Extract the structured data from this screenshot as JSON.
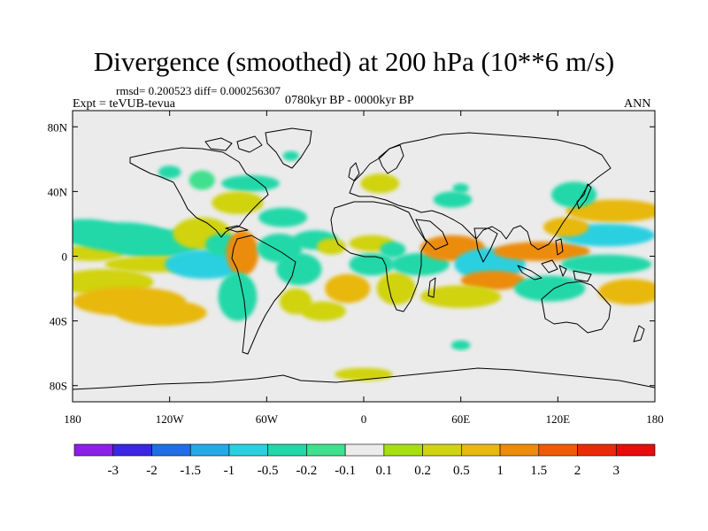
{
  "chart_data": {
    "type": "heatmap",
    "title": "Divergence (smoothed) at 200 hPa (10**6 m/s)",
    "stats": "rmsd= 0.200523  diff= 0.000256307",
    "experiment": "Expt = teVUB-tevua",
    "period": "0780kyr BP - 0000kyr BP",
    "season": "ANN",
    "x_ticks": [
      "180",
      "120W",
      "60W",
      "0",
      "60E",
      "120E",
      "180"
    ],
    "x_values": [
      -180,
      -120,
      -60,
      0,
      60,
      120,
      180
    ],
    "y_ticks": [
      "80N",
      "40N",
      "0",
      "40S",
      "80S"
    ],
    "y_values": [
      80,
      40,
      0,
      -40,
      -80
    ],
    "xlim": [
      -180,
      180
    ],
    "ylim": [
      -90,
      90
    ],
    "colorbar": {
      "labels": [
        "-3",
        "-2",
        "-1.5",
        "-1",
        "-0.5",
        "-0.2",
        "-0.1",
        "0.1",
        "0.2",
        "0.5",
        "1",
        "1.5",
        "2",
        "3"
      ],
      "colors": [
        "#8c1fe8",
        "#3b26e6",
        "#1f6fe6",
        "#24a8e8",
        "#2ad0e0",
        "#20d8a8",
        "#3fe08e",
        "#ebebeb",
        "#a7df10",
        "#d0d30f",
        "#e8b80c",
        "#ec8c0a",
        "#ef5a08",
        "#ec2a08",
        "#e80c0c"
      ]
    },
    "patches": [
      {
        "lon": -172,
        "lat": 15,
        "w": 22,
        "h": 8,
        "v": -0.3
      },
      {
        "lon": -168,
        "lat": 2,
        "w": 20,
        "h": 5,
        "v": 0.25
      },
      {
        "lon": -160,
        "lat": -16,
        "w": 30,
        "h": 8,
        "v": 0.3
      },
      {
        "lon": -150,
        "lat": 12,
        "w": 30,
        "h": 9,
        "v": -0.4
      },
      {
        "lon": -130,
        "lat": 8,
        "w": 30,
        "h": 9,
        "v": -0.5
      },
      {
        "lon": -130,
        "lat": -5,
        "w": 30,
        "h": 5,
        "v": 0.3
      },
      {
        "lon": -145,
        "lat": -28,
        "w": 35,
        "h": 9,
        "v": 0.5
      },
      {
        "lon": -125,
        "lat": -35,
        "w": 28,
        "h": 8,
        "v": 0.6
      },
      {
        "lon": -100,
        "lat": 14,
        "w": 18,
        "h": 10,
        "v": 0.3
      },
      {
        "lon": -98,
        "lat": -5,
        "w": 25,
        "h": 9,
        "v": -0.6
      },
      {
        "lon": -87,
        "lat": 7,
        "w": 11,
        "h": 7,
        "v": -0.5
      },
      {
        "lon": -75,
        "lat": 2,
        "w": 10,
        "h": 14,
        "v": 1.2
      },
      {
        "lon": -78,
        "lat": -25,
        "w": 12,
        "h": 15,
        "v": -0.4
      },
      {
        "lon": -100,
        "lat": 47,
        "w": 8,
        "h": 6,
        "v": -0.2
      },
      {
        "lon": -120,
        "lat": 52,
        "w": 7,
        "h": 4,
        "v": -0.3
      },
      {
        "lon": -70,
        "lat": 45,
        "w": 18,
        "h": 5,
        "v": -0.4
      },
      {
        "lon": -78,
        "lat": 33,
        "w": 16,
        "h": 7,
        "v": 0.4
      },
      {
        "lon": -50,
        "lat": 24,
        "w": 15,
        "h": 6,
        "v": -0.4
      },
      {
        "lon": -30,
        "lat": 10,
        "w": 14,
        "h": 6,
        "v": -0.5
      },
      {
        "lon": -52,
        "lat": 5,
        "w": 14,
        "h": 9,
        "v": -0.3
      },
      {
        "lon": -40,
        "lat": -8,
        "w": 14,
        "h": 10,
        "v": -0.5
      },
      {
        "lon": -42,
        "lat": -28,
        "w": 10,
        "h": 8,
        "v": 0.4
      },
      {
        "lon": -25,
        "lat": -34,
        "w": 14,
        "h": 6,
        "v": 0.3
      },
      {
        "lon": -45,
        "lat": 62,
        "w": 5,
        "h": 3,
        "v": -0.3
      },
      {
        "lon": -20,
        "lat": 6,
        "w": 9,
        "h": 5,
        "v": 0.4
      },
      {
        "lon": -10,
        "lat": -20,
        "w": 14,
        "h": 9,
        "v": 0.5
      },
      {
        "lon": 5,
        "lat": -5,
        "w": 14,
        "h": 7,
        "v": -0.5
      },
      {
        "lon": 5,
        "lat": 8,
        "w": 14,
        "h": 5,
        "v": 0.3
      },
      {
        "lon": 20,
        "lat": -20,
        "w": 12,
        "h": 10,
        "v": 0.4
      },
      {
        "lon": 18,
        "lat": 4,
        "w": 8,
        "h": 5,
        "v": -0.4
      },
      {
        "lon": 10,
        "lat": 45,
        "w": 12,
        "h": 6,
        "v": 0.3
      },
      {
        "lon": 35,
        "lat": -5,
        "w": 18,
        "h": 7,
        "v": -0.3
      },
      {
        "lon": 55,
        "lat": 5,
        "w": 20,
        "h": 8,
        "v": 1.4
      },
      {
        "lon": 78,
        "lat": -5,
        "w": 22,
        "h": 10,
        "v": -0.6
      },
      {
        "lon": 80,
        "lat": -15,
        "w": 20,
        "h": 6,
        "v": 1.1
      },
      {
        "lon": 60,
        "lat": -25,
        "w": 25,
        "h": 7,
        "v": 0.3
      },
      {
        "lon": 110,
        "lat": 3,
        "w": 30,
        "h": 6,
        "v": 1.2
      },
      {
        "lon": 115,
        "lat": -20,
        "w": 22,
        "h": 8,
        "v": -0.3
      },
      {
        "lon": 155,
        "lat": 28,
        "w": 30,
        "h": 7,
        "v": 0.9
      },
      {
        "lon": 150,
        "lat": 13,
        "w": 30,
        "h": 7,
        "v": -0.6
      },
      {
        "lon": 130,
        "lat": 38,
        "w": 14,
        "h": 8,
        "v": -0.4
      },
      {
        "lon": 125,
        "lat": 18,
        "w": 14,
        "h": 6,
        "v": 0.6
      },
      {
        "lon": 150,
        "lat": -5,
        "w": 28,
        "h": 6,
        "v": -0.3
      },
      {
        "lon": 165,
        "lat": -22,
        "w": 20,
        "h": 8,
        "v": 0.5
      },
      {
        "lon": 55,
        "lat": 35,
        "w": 12,
        "h": 5,
        "v": -0.3
      },
      {
        "lon": 60,
        "lat": 42,
        "w": 5,
        "h": 3,
        "v": -0.3
      },
      {
        "lon": 60,
        "lat": -55,
        "w": 6,
        "h": 3,
        "v": -0.3
      },
      {
        "lon": 0,
        "lat": -73,
        "w": 18,
        "h": 4,
        "v": 0.3
      }
    ]
  }
}
